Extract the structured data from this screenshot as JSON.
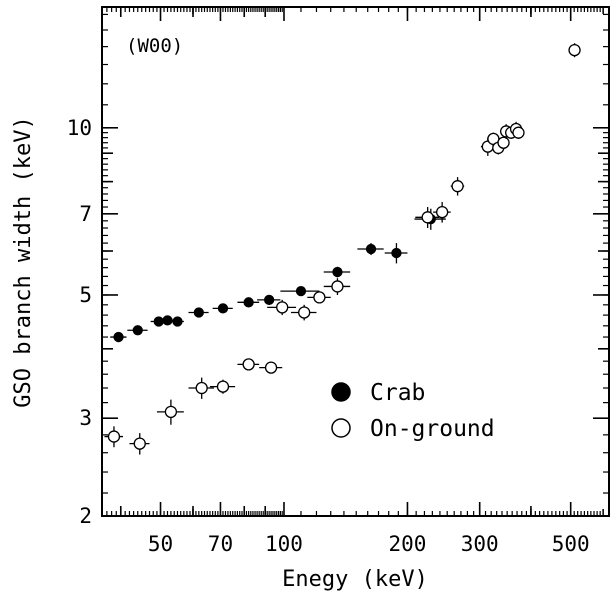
{
  "chart_data": {
    "type": "scatter",
    "title": "",
    "panel_label": "(W00)",
    "xlabel": "Enegy (keV)",
    "ylabel": "GSO branch width (keV)",
    "xscale": "log",
    "yscale": "log",
    "xlim": [
      36,
      620
    ],
    "ylim": [
      2,
      16.5
    ],
    "xticks": [
      50,
      70,
      100,
      200,
      300,
      500
    ],
    "xtick_labels": [
      "50",
      "70",
      "100",
      "200",
      "300",
      "500"
    ],
    "yticks": [
      2,
      3,
      5,
      7,
      10
    ],
    "ytick_labels": [
      "2",
      "3",
      "5",
      "7",
      "10"
    ],
    "legend_position": "lower-right",
    "series": [
      {
        "name": "Crab",
        "marker": "filled-circle",
        "points": [
          {
            "x": 39.5,
            "y": 4.2,
            "xerr": [
              1.8,
              1.8
            ],
            "yerr": [
              0.07,
              0.07
            ]
          },
          {
            "x": 44,
            "y": 4.32,
            "xerr": [
              2.5,
              2.5
            ],
            "yerr": [
              0.07,
              0.07
            ]
          },
          {
            "x": 49.5,
            "y": 4.48,
            "xerr": [
              2.2,
              2.2
            ],
            "yerr": [
              0.07,
              0.07
            ]
          },
          {
            "x": 52,
            "y": 4.5,
            "xerr": [
              1.8,
              1.8
            ],
            "yerr": [
              0.07,
              0.07
            ]
          },
          {
            "x": 55,
            "y": 4.48,
            "xerr": [
              2,
              2
            ],
            "yerr": [
              0.07,
              0.07
            ]
          },
          {
            "x": 62,
            "y": 4.65,
            "xerr": [
              3.5,
              3.5
            ],
            "yerr": [
              0.07,
              0.07
            ]
          },
          {
            "x": 71,
            "y": 4.73,
            "xerr": [
              4,
              4
            ],
            "yerr": [
              0.08,
              0.08
            ]
          },
          {
            "x": 82,
            "y": 4.85,
            "xerr": [
              5,
              5
            ],
            "yerr": [
              0.08,
              0.08
            ]
          },
          {
            "x": 92,
            "y": 4.9,
            "xerr": [
              6,
              6
            ],
            "yerr": [
              0.1,
              0.1
            ]
          },
          {
            "x": 110,
            "y": 5.08,
            "xerr": [
              12,
              12
            ],
            "yerr": [
              0.1,
              0.1
            ]
          },
          {
            "x": 135,
            "y": 5.5,
            "xerr": [
              10,
              10
            ],
            "yerr": [
              0.12,
              0.12
            ]
          },
          {
            "x": 163,
            "y": 6.05,
            "xerr": [
              12,
              12
            ],
            "yerr": [
              0.15,
              0.15
            ]
          },
          {
            "x": 188,
            "y": 5.95,
            "xerr": [
              12,
              12
            ],
            "yerr": [
              0.25,
              0.25
            ]
          },
          {
            "x": 228,
            "y": 6.85,
            "xerr": [
              20,
              20
            ],
            "yerr": [
              0.3,
              0.3
            ]
          }
        ]
      },
      {
        "name": "On-ground",
        "marker": "open-circle",
        "points": [
          {
            "x": 38.5,
            "y": 2.78,
            "xerr": [
              2,
              2
            ],
            "yerr": [
              0.12,
              0.12
            ]
          },
          {
            "x": 44.5,
            "y": 2.7,
            "xerr": [
              2.5,
              2.5
            ],
            "yerr": [
              0.12,
              0.12
            ]
          },
          {
            "x": 53,
            "y": 3.08,
            "xerr": [
              4,
              4
            ],
            "yerr": [
              0.16,
              0.16
            ]
          },
          {
            "x": 63,
            "y": 3.4,
            "xerr": [
              4.5,
              4.5
            ],
            "yerr": [
              0.15,
              0.15
            ]
          },
          {
            "x": 71,
            "y": 3.42,
            "xerr": [
              5,
              5
            ],
            "yerr": [
              0.1,
              0.1
            ]
          },
          {
            "x": 82,
            "y": 3.75,
            "xerr": [
              5,
              5
            ],
            "yerr": [
              0.08,
              0.08
            ]
          },
          {
            "x": 93,
            "y": 3.7,
            "xerr": [
              6,
              6
            ],
            "yerr": [
              0.08,
              0.08
            ]
          },
          {
            "x": 99,
            "y": 4.75,
            "xerr": [
              8,
              8
            ],
            "yerr": [
              0.15,
              0.15
            ]
          },
          {
            "x": 112,
            "y": 4.65,
            "xerr": [
              8,
              8
            ],
            "yerr": [
              0.15,
              0.15
            ]
          },
          {
            "x": 122,
            "y": 4.95,
            "xerr": [
              8,
              8
            ],
            "yerr": [
              0.1,
              0.1
            ]
          },
          {
            "x": 135,
            "y": 5.18,
            "xerr": [
              10,
              10
            ],
            "yerr": [
              0.18,
              0.18
            ]
          },
          {
            "x": 224,
            "y": 6.9,
            "xerr": [
              15,
              15
            ],
            "yerr": [
              0.3,
              0.3
            ]
          },
          {
            "x": 243,
            "y": 7.05,
            "xerr": [
              12,
              12
            ],
            "yerr": [
              0.3,
              0.3
            ]
          },
          {
            "x": 265,
            "y": 7.85,
            "xerr": [
              10,
              10
            ],
            "yerr": [
              0.3,
              0.3
            ]
          },
          {
            "x": 314,
            "y": 9.25,
            "xerr": [
              12,
              12
            ],
            "yerr": [
              0.35,
              0.35
            ]
          },
          {
            "x": 324,
            "y": 9.55,
            "xerr": [
              10,
              10
            ],
            "yerr": [
              0.25,
              0.25
            ]
          },
          {
            "x": 333,
            "y": 9.2,
            "xerr": [
              10,
              10
            ],
            "yerr": [
              0.25,
              0.25
            ]
          },
          {
            "x": 343,
            "y": 9.4,
            "xerr": [
              10,
              10
            ],
            "yerr": [
              0.25,
              0.25
            ]
          },
          {
            "x": 348,
            "y": 9.85,
            "xerr": [
              10,
              10
            ],
            "yerr": [
              0.3,
              0.3
            ]
          },
          {
            "x": 358,
            "y": 9.8,
            "xerr": [
              10,
              10
            ],
            "yerr": [
              0.25,
              0.25
            ]
          },
          {
            "x": 368,
            "y": 9.95,
            "xerr": [
              10,
              10
            ],
            "yerr": [
              0.3,
              0.3
            ]
          },
          {
            "x": 373,
            "y": 9.8,
            "xerr": [
              10,
              10
            ],
            "yerr": [
              0.25,
              0.25
            ]
          },
          {
            "x": 511,
            "y": 13.8,
            "xerr": [
              15,
              15
            ],
            "yerr": [
              0.4,
              0.4
            ]
          }
        ]
      }
    ]
  }
}
